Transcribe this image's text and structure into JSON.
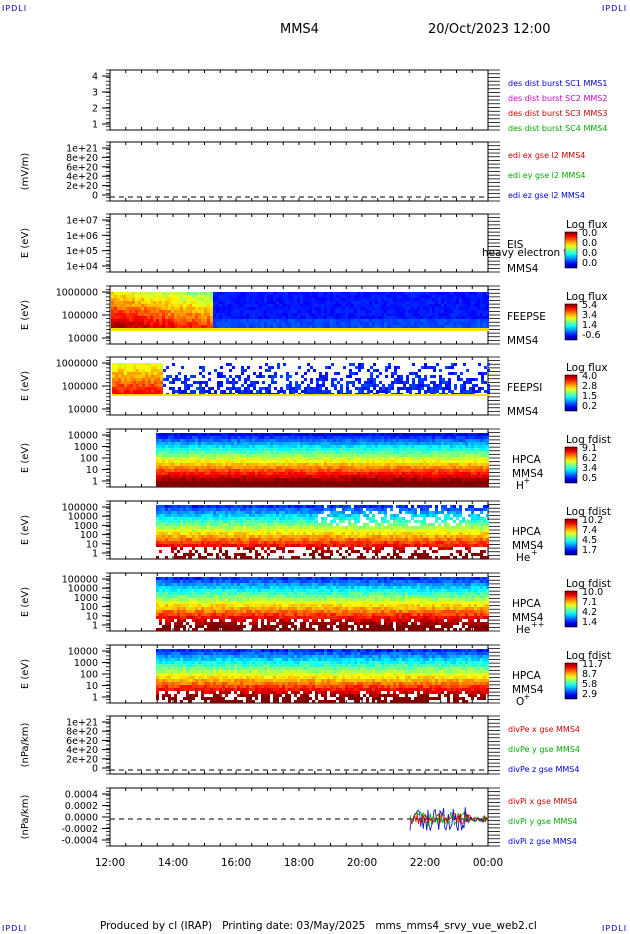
{
  "header": {
    "corner_label": "IPDLI",
    "spacecraft": "MMS4",
    "datetime": "20/Oct/2023 12:00"
  },
  "footer": {
    "producer": "Produced by cl (IRAP)",
    "printing": "Printing date: 03/May/2025",
    "script": "mms_mms4_srvy_vue_web2.cl"
  },
  "chart_data": {
    "type": "heatmap",
    "x_ticks": [
      "12:00",
      "14:00",
      "16:00",
      "18:00",
      "20:00",
      "22:00",
      "00:00"
    ],
    "panels": [
      {
        "id": "des-dist",
        "kind": "lines",
        "ylabel": "",
        "yticks": [
          "4",
          "3",
          "2",
          "1"
        ],
        "side_labels": [
          {
            "text": "des dist burst SC1 MMS1",
            "color": "#0000cc"
          },
          {
            "text": "des dist burst SC2 MMS2",
            "color": "#cc00cc"
          },
          {
            "text": "des dist burst SC3 MMS3",
            "color": "#cc0000"
          },
          {
            "text": "des dist burst SC4 MMS4",
            "color": "#00aa00"
          }
        ]
      },
      {
        "id": "edi-e",
        "kind": "lines",
        "ylabel": "(mV/m)",
        "yticks": [
          "1e+21",
          "8e+20",
          "6e+20",
          "4e+20",
          "2e+20",
          "0"
        ],
        "dashed_zero": true,
        "side_labels": [
          {
            "text": "edi ex gse l2 MMS4",
            "color": "#cc0000"
          },
          {
            "text": "edi ey gse l2 MMS4",
            "color": "#00aa00"
          },
          {
            "text": "edi ez gse l2 MMS4",
            "color": "#0000cc"
          }
        ]
      },
      {
        "id": "eis",
        "kind": "spectrogram",
        "ylabel": "E (eV)",
        "yticks": [
          "1e+07",
          "1e+06",
          "1e+05",
          "1e+04"
        ],
        "instrument": "EIS",
        "instrument_sub": "MMS4",
        "overlay_text": "heavy electron to",
        "colorbar_title": "Log flux",
        "colorbar_ticks": [
          "0.0",
          "0.0",
          "0.0",
          "0.0"
        ]
      },
      {
        "id": "feepse",
        "kind": "spectrogram",
        "ylabel": "E (eV)",
        "yticks": [
          "1000000",
          "100000",
          "10000"
        ],
        "instrument": "FEEPSE",
        "instrument_sub": "MMS4",
        "colorbar_title": "Log flux",
        "colorbar_ticks": [
          "5.4",
          "3.4",
          "1.4",
          "-0.6"
        ]
      },
      {
        "id": "feepsi",
        "kind": "spectrogram",
        "ylabel": "E (eV)",
        "yticks": [
          "1000000",
          "100000",
          "10000"
        ],
        "instrument": "FEEPSI",
        "instrument_sub": "MMS4",
        "colorbar_title": "Log flux",
        "colorbar_ticks": [
          "4.0",
          "2.8",
          "1.5",
          "0.2"
        ]
      },
      {
        "id": "hpca-h",
        "kind": "spectrogram",
        "ylabel": "E (eV)",
        "yticks": [
          "10000",
          "1000",
          "100",
          "10",
          "1"
        ],
        "instrument": "HPCA",
        "instrument_sub": "MMS4",
        "species": "H",
        "charge": "+",
        "colorbar_title": "Log fdist",
        "colorbar_ticks": [
          "9.1",
          "6.2",
          "3.4",
          "0.5"
        ]
      },
      {
        "id": "hpca-he",
        "kind": "spectrogram",
        "ylabel": "E (eV)",
        "yticks": [
          "100000",
          "10000",
          "1000",
          "100",
          "10",
          "1"
        ],
        "instrument": "HPCA",
        "instrument_sub": "MMS4",
        "species": "He",
        "charge": "+",
        "colorbar_title": "Log fdist",
        "colorbar_ticks": [
          "10.2",
          "7.4",
          "4.5",
          "1.7"
        ]
      },
      {
        "id": "hpca-he2",
        "kind": "spectrogram",
        "ylabel": "E (eV)",
        "yticks": [
          "100000",
          "10000",
          "1000",
          "100",
          "10",
          "1"
        ],
        "instrument": "HPCA",
        "instrument_sub": "MMS4",
        "species": "He",
        "charge": "++",
        "colorbar_title": "Log fdist",
        "colorbar_ticks": [
          "10.0",
          "7.1",
          "4.2",
          "1.4"
        ]
      },
      {
        "id": "hpca-o",
        "kind": "spectrogram",
        "ylabel": "E (eV)",
        "yticks": [
          "10000",
          "1000",
          "100",
          "10",
          "1"
        ],
        "instrument": "HPCA",
        "instrument_sub": "MMS4",
        "species": "O",
        "charge": "+",
        "colorbar_title": "Log fdist",
        "colorbar_ticks": [
          "11.7",
          "8.7",
          "5.8",
          "2.9"
        ]
      },
      {
        "id": "divpe",
        "kind": "lines",
        "ylabel": "(nPa/km)",
        "yticks": [
          "1e+21",
          "8e+20",
          "6e+20",
          "4e+20",
          "2e+20",
          "0"
        ],
        "dashed_zero": true,
        "side_labels": [
          {
            "text": "divPe x gse MMS4",
            "color": "#cc0000"
          },
          {
            "text": "divPe y gse MMS4",
            "color": "#00aa00"
          },
          {
            "text": "divPe z gse MMS4",
            "color": "#0000cc"
          }
        ]
      },
      {
        "id": "divpi",
        "kind": "lines",
        "ylabel": "(nPa/km)",
        "yticks": [
          "0.0004",
          "0.0002",
          "0.0000",
          "-0.0002",
          "-0.0004"
        ],
        "dashed_zero": true,
        "side_labels": [
          {
            "text": "divPi x gse MMS4",
            "color": "#cc0000"
          },
          {
            "text": "divPi y gse MMS4",
            "color": "#00aa00"
          },
          {
            "text": "divPi z gse MMS4",
            "color": "#0000cc"
          }
        ]
      }
    ]
  }
}
